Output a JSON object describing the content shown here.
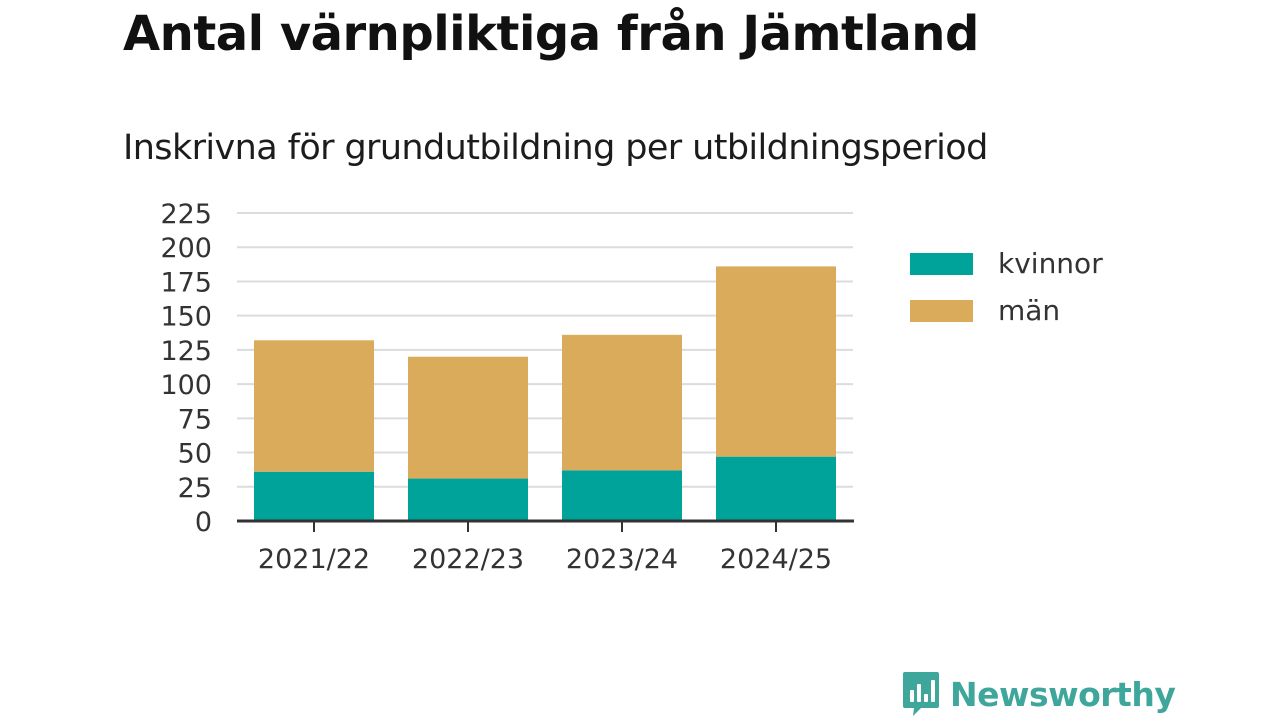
{
  "title": "Antal värnpliktiga från Jämtland",
  "subtitle": "Inskrivna för grundutbildning per utbildningsperiod",
  "brand": {
    "name": "Newsworthy",
    "icon": "bar-chart-speech-bubble-icon"
  },
  "colors": {
    "kvinnor": "#00a39a",
    "man": "#d9ab5a",
    "grid": "#dcdcdc",
    "axis": "#333333"
  },
  "chart_data": {
    "type": "bar",
    "stacked": true,
    "categories": [
      "2021/22",
      "2022/23",
      "2023/24",
      "2024/25"
    ],
    "series": [
      {
        "name": "kvinnor",
        "values": [
          36,
          31,
          37,
          47
        ]
      },
      {
        "name": "män",
        "values": [
          96,
          89,
          99,
          139
        ]
      }
    ],
    "ylim": [
      0,
      225
    ],
    "yticks": [
      0,
      25,
      50,
      75,
      100,
      125,
      150,
      175,
      200,
      225
    ],
    "grid": true,
    "legend_position": "right"
  }
}
